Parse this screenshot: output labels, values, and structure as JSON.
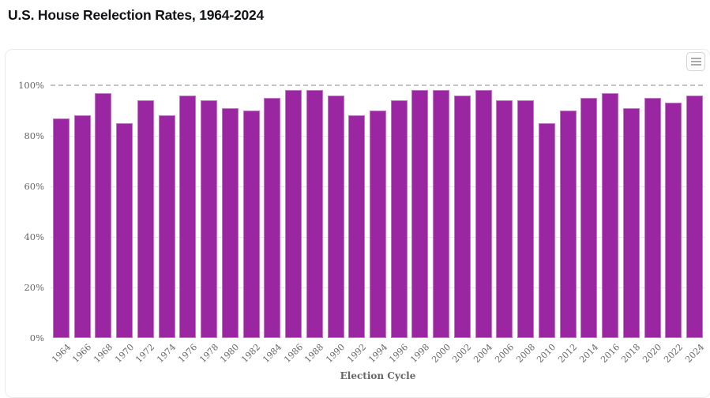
{
  "page": {
    "title": "U.S. House Reelection Rates, 1964-2024"
  },
  "toolbar": {
    "context_menu_icon": "hamburger-menu-icon"
  },
  "colors": {
    "bar": "#9a26a1",
    "gridline": "#e8e8e8",
    "dashed_line": "#c4c4c4",
    "axis_text": "#666666",
    "title_text": "#111316"
  },
  "chart_data": {
    "type": "bar",
    "title": "U.S. House Reelection Rates, 1964-2024",
    "xlabel": "Election Cycle",
    "ylabel": "",
    "ylim": [
      0,
      100
    ],
    "ytick_step": 20,
    "ytick_labels": [
      "0%",
      "20%",
      "40%",
      "60%",
      "80%",
      "100%"
    ],
    "grid": true,
    "dashed_reference_line": 100,
    "legend": "none",
    "categories": [
      "1964",
      "1966",
      "1968",
      "1970",
      "1972",
      "1974",
      "1976",
      "1978",
      "1980",
      "1982",
      "1984",
      "1986",
      "1988",
      "1990",
      "1992",
      "1994",
      "1996",
      "1998",
      "2000",
      "2002",
      "2004",
      "2006",
      "2008",
      "2010",
      "2012",
      "2014",
      "2016",
      "2018",
      "2020",
      "2022",
      "2024"
    ],
    "values": [
      87,
      88,
      97,
      85,
      94,
      88,
      96,
      94,
      91,
      90,
      95,
      98,
      98,
      96,
      88,
      90,
      94,
      98,
      98,
      96,
      98,
      94,
      94,
      85,
      90,
      95,
      97,
      91,
      95,
      93,
      96
    ]
  }
}
